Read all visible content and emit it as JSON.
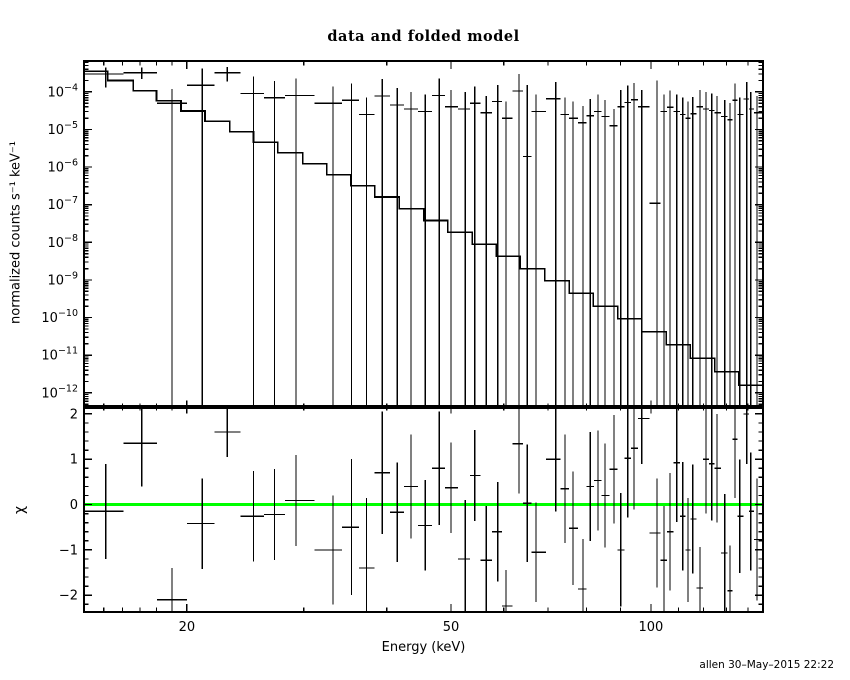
{
  "page": {
    "timestamp": "allen 30–May–2015 22:22"
  },
  "chart_data": {
    "type": "scatter",
    "title": "data and folded model",
    "xlabel": "Energy (keV)",
    "xscale": "log",
    "xlim": [
      14,
      147.5
    ],
    "x_ticks": {
      "major": [
        20,
        50,
        100
      ],
      "minor": [
        15,
        16,
        17,
        18,
        19,
        30,
        40,
        60,
        70,
        80,
        90,
        110,
        120,
        130,
        140
      ]
    },
    "colors": {
      "data": "#000000",
      "model": "#000000",
      "zero_line": "#00ff00",
      "background": "#ffffff"
    },
    "top_panel": {
      "ylabel": "normalized counts s⁻¹ keV⁻¹",
      "yscale": "log",
      "ylim_exp": [
        -12.35,
        -3.18
      ],
      "y_tick_exps": [
        -4,
        -5,
        -6,
        -7,
        -8,
        -9,
        -10,
        -11,
        -12
      ],
      "model_steps": [
        [
          14.0,
          0.00035
        ],
        [
          15.2,
          0.0002
        ],
        [
          16.6,
          0.000107
        ],
        [
          18.0,
          5.8e-05
        ],
        [
          19.6,
          3.1e-05
        ],
        [
          21.3,
          1.67e-05
        ],
        [
          23.2,
          8.8e-06
        ],
        [
          25.2,
          4.6e-06
        ],
        [
          27.4,
          2.4e-06
        ],
        [
          29.9,
          1.23e-06
        ],
        [
          32.5,
          6.3e-07
        ],
        [
          35.3,
          3.2e-07
        ],
        [
          38.4,
          1.6e-07
        ],
        [
          41.8,
          7.8e-08
        ],
        [
          45.5,
          3.8e-08
        ],
        [
          49.4,
          1.87e-08
        ],
        [
          53.8,
          9e-09
        ],
        [
          58.5,
          4.3e-09
        ],
        [
          63.6,
          2e-09
        ],
        [
          69.2,
          9.5e-10
        ],
        [
          75.3,
          4.4e-10
        ],
        [
          81.9,
          2e-10
        ],
        [
          89.1,
          9.3e-11
        ],
        [
          96.9,
          4.2e-11
        ],
        [
          105.4,
          1.9e-11
        ],
        [
          114.6,
          8.3e-12
        ],
        [
          124.7,
          3.6e-12
        ],
        [
          135.6,
          1.6e-12
        ],
        [
          147.5,
          7e-13
        ]
      ]
    },
    "bottom_panel": {
      "ylabel": "χ",
      "yscale": "linear",
      "ylim": [
        -2.37,
        2.13
      ],
      "y_ticks": [
        2,
        1,
        0,
        -1,
        -2
      ],
      "y_minor_step": 0.2,
      "zero_line": {
        "y": 0,
        "color": "#00ff00"
      }
    },
    "points_fields": [
      "energy_keV",
      "counts",
      "chi",
      "chi_err",
      "counts_lo",
      "counts_hi"
    ],
    "points": [
      [
        15.1,
        0.0003,
        -0.15,
        1.05,
        0.00013,
        0.00044
      ],
      [
        17.1,
        0.00032,
        1.35,
        0.95,
        0.00022,
        0.00045
      ],
      [
        19.0,
        5e-05,
        -2.1,
        0.7,
        null,
        0.00012
      ],
      [
        21.1,
        0.00015,
        -0.42,
        1.0
      ],
      [
        23.0,
        0.00032,
        1.6,
        0.55,
        0.00019,
        0.00046
      ],
      [
        25.2,
        9e-05,
        -0.26,
        1.0
      ],
      [
        27.1,
        7e-05,
        -0.22,
        1.0
      ],
      [
        29.2,
        8e-05,
        0.09,
        1.0
      ],
      [
        33.2,
        5e-05,
        -1.0,
        1.2
      ],
      [
        35.4,
        6e-05,
        -0.5,
        1.5
      ],
      [
        37.3,
        2.5e-05,
        -1.4,
        1.55
      ],
      [
        39.4,
        7.8e-05,
        0.7,
        1.35
      ],
      [
        41.5,
        4.5e-05,
        -0.17,
        1.1
      ],
      [
        43.5,
        3.5e-05,
        0.4,
        1.15
      ],
      [
        45.7,
        3e-05,
        -0.46,
        1.0
      ],
      [
        48.0,
        8e-05,
        0.8,
        1.25
      ],
      [
        50.0,
        4e-05,
        0.37,
        1.0
      ],
      [
        52.5,
        3.5e-05,
        -1.2,
        1.3
      ],
      [
        54.3,
        5e-05,
        0.64,
        1.0
      ],
      [
        56.5,
        2.8e-05,
        -1.23,
        1.2
      ],
      [
        58.8,
        5.5e-05,
        -0.6,
        1.1
      ],
      [
        60.5,
        2e-05,
        -2.24,
        0.8
      ],
      [
        63.3,
        0.000105,
        1.34,
        1.1
      ],
      [
        65.1,
        1.9e-06,
        0.03,
        1.3,
        null,
        0.00015
      ],
      [
        67.1,
        3e-05,
        -1.05,
        1.1
      ],
      [
        71.9,
        6.6e-05,
        1.0,
        1.15
      ],
      [
        74.2,
        2.5e-05,
        0.35,
        1.2
      ],
      [
        76.3,
        2e-05,
        -0.52,
        1.25
      ],
      [
        79.0,
        1.5e-05,
        -1.86,
        1.1
      ],
      [
        81.0,
        2.3e-05,
        0.4,
        1.2
      ],
      [
        83.2,
        3e-05,
        0.53,
        1.1
      ],
      [
        85.3,
        2.2e-05,
        0.2,
        1.15
      ],
      [
        88.0,
        1.25e-05,
        0.78,
        1.2
      ],
      [
        90.1,
        4e-05,
        -1.0,
        1.25
      ],
      [
        92.3,
        5.2e-05,
        1.02,
        1.3
      ],
      [
        94.3,
        6.2e-05,
        1.24,
        1.35
      ],
      [
        96.9,
        4e-05,
        1.9,
        1.0
      ],
      [
        102.1,
        1.1e-07,
        -0.63,
        1.2,
        null,
        0.0002
      ],
      [
        104.6,
        3e-05,
        -1.23,
        1.2
      ],
      [
        106.8,
        3.9e-05,
        -0.6,
        1.3
      ],
      [
        109.4,
        3e-05,
        0.92,
        1.3
      ],
      [
        111.7,
        2.5e-05,
        -0.26,
        1.2
      ],
      [
        113.7,
        2e-05,
        -1.0,
        1.15
      ],
      [
        115.6,
        2.6e-05,
        -0.32,
        1.2
      ],
      [
        118.5,
        4e-05,
        -1.84,
        0.9
      ],
      [
        121.0,
        3.5e-05,
        1.0,
        1.2
      ],
      [
        123.5,
        3.2e-05,
        0.9,
        1.25
      ],
      [
        125.7,
        2.8e-05,
        0.8,
        1.2
      ],
      [
        129.2,
        2.2e-05,
        -1.07,
        1.3
      ],
      [
        131.5,
        1.8e-05,
        -1.9,
        1.0
      ],
      [
        133.8,
        6e-05,
        1.44,
        1.3
      ],
      [
        136.1,
        2.5e-05,
        -0.26,
        1.25
      ],
      [
        139.4,
        6.5e-05,
        2.0,
        1.1
      ],
      [
        141.4,
        3.5e-05,
        -0.15,
        1.3
      ],
      [
        144.4,
        2.8e-05,
        -0.77,
        1.35
      ]
    ]
  }
}
